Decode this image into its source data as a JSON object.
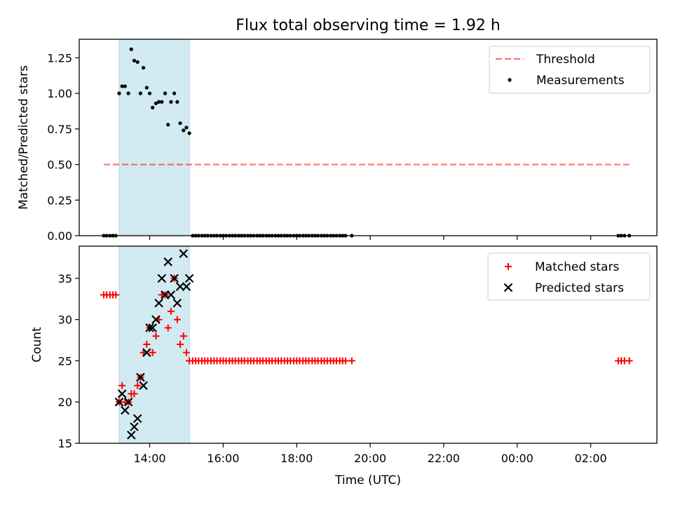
{
  "figure": {
    "title": "Flux total observing time = 1.92 h",
    "xlabel": "Time (UTC)"
  },
  "colors": {
    "span": "#add8e6",
    "threshold": "#ff0000",
    "measurements": "#000000",
    "matched": "#ff0000",
    "predicted": "#000000"
  },
  "chart_data": [
    {
      "type": "scatter",
      "ylabel": "Matched/Predicted stars",
      "xlim": [
        12.083,
        27.8
      ],
      "ylim": [
        0,
        1.38
      ],
      "yticks": [
        0,
        0.25,
        0.5,
        0.75,
        1.0,
        1.25
      ],
      "ytick_labels": [
        "0.00",
        "0.25",
        "0.50",
        "0.75",
        "1.00",
        "1.25"
      ],
      "xticks": [
        14,
        16,
        18,
        20,
        22,
        24,
        26
      ],
      "xtick_labels": [
        "14:00",
        "16:00",
        "18:00",
        "20:00",
        "22:00",
        "00:00",
        "02:00"
      ],
      "shaded_span": [
        13.17,
        15.08
      ],
      "threshold": {
        "name": "Threshold",
        "y": 0.5,
        "x_range": [
          12.75,
          27.05
        ],
        "style": "dashed"
      },
      "legend": {
        "position": "upper right",
        "entries": [
          "Threshold",
          "Measurements"
        ]
      },
      "series": [
        {
          "name": "Measurements",
          "marker": "dot",
          "x": [
            12.75,
            12.83,
            12.92,
            13.0,
            13.08,
            13.17,
            13.25,
            13.33,
            13.42,
            13.5,
            13.58,
            13.67,
            13.75,
            13.83,
            13.92,
            14.0,
            14.08,
            14.17,
            14.25,
            14.33,
            14.42,
            14.5,
            14.58,
            14.67,
            14.75,
            14.83,
            14.92,
            15.0,
            15.08,
            15.17,
            15.25,
            15.33,
            15.42,
            15.5,
            15.58,
            15.67,
            15.75,
            15.83,
            15.92,
            16.0,
            16.08,
            16.17,
            16.25,
            16.33,
            16.42,
            16.5,
            16.58,
            16.67,
            16.75,
            16.83,
            16.92,
            17.0,
            17.08,
            17.17,
            17.25,
            17.33,
            17.42,
            17.5,
            17.58,
            17.67,
            17.75,
            17.83,
            17.92,
            18.0,
            18.08,
            18.17,
            18.25,
            18.33,
            18.42,
            18.5,
            18.58,
            18.67,
            18.75,
            18.83,
            18.92,
            19.0,
            19.08,
            19.17,
            19.25,
            19.33,
            19.5,
            26.75,
            26.83,
            26.92,
            27.05
          ],
          "y": [
            0,
            0,
            0,
            0,
            0,
            1.0,
            1.05,
            1.05,
            1.0,
            1.31,
            1.23,
            1.22,
            1.0,
            1.18,
            1.04,
            1.0,
            0.9,
            0.93,
            0.94,
            0.94,
            1.0,
            0.78,
            0.94,
            1.0,
            0.94,
            0.79,
            0.74,
            0.76,
            0.72,
            0,
            0,
            0,
            0,
            0,
            0,
            0,
            0,
            0,
            0,
            0,
            0,
            0,
            0,
            0,
            0,
            0,
            0,
            0,
            0,
            0,
            0,
            0,
            0,
            0,
            0,
            0,
            0,
            0,
            0,
            0,
            0,
            0,
            0,
            0,
            0,
            0,
            0,
            0,
            0,
            0,
            0,
            0,
            0,
            0,
            0,
            0,
            0,
            0,
            0,
            0,
            0,
            0,
            0,
            0,
            0
          ]
        }
      ]
    },
    {
      "type": "scatter",
      "ylabel": "Count",
      "xlim": [
        12.083,
        27.8
      ],
      "ylim": [
        15,
        38.9
      ],
      "yticks": [
        15,
        20,
        25,
        30,
        35
      ],
      "ytick_labels": [
        "15",
        "20",
        "25",
        "30",
        "35"
      ],
      "xticks": [
        14,
        16,
        18,
        20,
        22,
        24,
        26
      ],
      "xtick_labels": [
        "14:00",
        "16:00",
        "18:00",
        "20:00",
        "22:00",
        "00:00",
        "02:00"
      ],
      "shaded_span": [
        13.17,
        15.08
      ],
      "legend": {
        "position": "upper right",
        "entries": [
          "Matched stars",
          "Predicted stars"
        ]
      },
      "series": [
        {
          "name": "Matched stars",
          "marker": "plus",
          "x": [
            12.75,
            12.83,
            12.92,
            13.0,
            13.08,
            13.17,
            13.25,
            13.33,
            13.42,
            13.5,
            13.58,
            13.67,
            13.75,
            13.83,
            13.92,
            14.0,
            14.08,
            14.17,
            14.25,
            14.33,
            14.42,
            14.5,
            14.58,
            14.67,
            14.75,
            14.83,
            14.92,
            15.0,
            15.08,
            15.17,
            15.25,
            15.33,
            15.42,
            15.5,
            15.58,
            15.67,
            15.75,
            15.83,
            15.92,
            16.0,
            16.08,
            16.17,
            16.25,
            16.33,
            16.42,
            16.5,
            16.58,
            16.67,
            16.75,
            16.83,
            16.92,
            17.0,
            17.08,
            17.17,
            17.25,
            17.33,
            17.42,
            17.5,
            17.58,
            17.67,
            17.75,
            17.83,
            17.92,
            18.0,
            18.08,
            18.17,
            18.25,
            18.33,
            18.42,
            18.5,
            18.58,
            18.67,
            18.75,
            18.83,
            18.92,
            19.0,
            19.08,
            19.17,
            19.25,
            19.33,
            19.5,
            26.75,
            26.83,
            26.92,
            27.05
          ],
          "y": [
            33,
            33,
            33,
            33,
            33,
            20,
            22,
            20,
            20,
            21,
            21,
            22,
            23,
            26,
            27,
            29,
            26,
            28,
            30,
            33,
            33,
            29,
            31,
            35,
            30,
            27,
            28,
            26,
            25,
            25,
            25,
            25,
            25,
            25,
            25,
            25,
            25,
            25,
            25,
            25,
            25,
            25,
            25,
            25,
            25,
            25,
            25,
            25,
            25,
            25,
            25,
            25,
            25,
            25,
            25,
            25,
            25,
            25,
            25,
            25,
            25,
            25,
            25,
            25,
            25,
            25,
            25,
            25,
            25,
            25,
            25,
            25,
            25,
            25,
            25,
            25,
            25,
            25,
            25,
            25,
            25,
            25,
            25,
            25,
            25
          ]
        },
        {
          "name": "Predicted stars",
          "marker": "x",
          "x": [
            13.17,
            13.25,
            13.33,
            13.42,
            13.5,
            13.58,
            13.67,
            13.75,
            13.83,
            13.92,
            14.0,
            14.08,
            14.17,
            14.25,
            14.33,
            14.42,
            14.5,
            14.58,
            14.67,
            14.75,
            14.83,
            14.92,
            15.0,
            15.08
          ],
          "y": [
            20,
            21,
            19,
            20,
            16,
            17,
            18,
            23,
            22,
            26,
            29,
            29,
            30,
            32,
            35,
            33,
            37,
            33,
            35,
            32,
            34,
            38,
            34,
            35
          ]
        }
      ]
    }
  ]
}
